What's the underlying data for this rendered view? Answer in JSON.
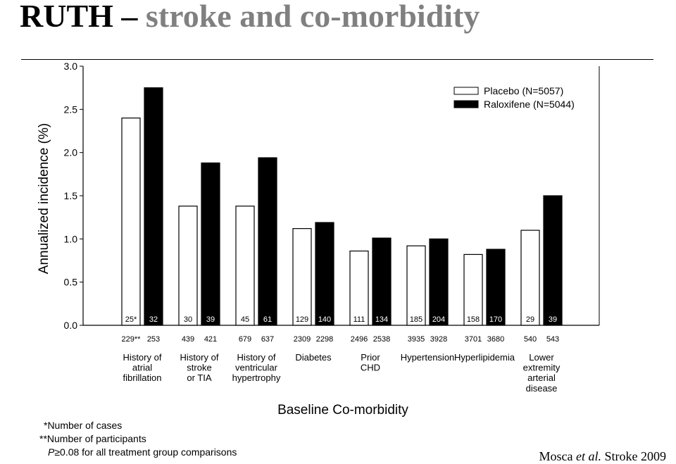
{
  "slide": {
    "title_main": "RUTH",
    "title_sep": " – ",
    "title_sub": "stroke and co-morbidity",
    "footnotes": {
      "cases": "*Number of cases",
      "participants": "**Number of participants",
      "p_italic": "P",
      "p_rest": "≥0.08 for all treatment group comparisons"
    },
    "citation": {
      "author": "Mosca ",
      "etal": "et al.",
      "source": " Stroke 2009"
    }
  },
  "chart_data": {
    "type": "bar",
    "ylabel": "Annualized incidence (%)",
    "xlabel": "Baseline Co-morbidity",
    "ylim": [
      0,
      3.0
    ],
    "yticks": [
      "0.0",
      "0.5",
      "1.0",
      "1.5",
      "2.0",
      "2.5",
      "3.0"
    ],
    "legend_position": "top-right",
    "categories": [
      [
        "History of",
        "atrial",
        "fibrillation"
      ],
      [
        "History of",
        "stroke",
        "or TIA"
      ],
      [
        "History of",
        "ventricular",
        "hypertrophy"
      ],
      [
        "Diabetes"
      ],
      [
        "Prior",
        "CHD"
      ],
      [
        "Hypertension"
      ],
      [
        "Hyperlipidemia"
      ],
      [
        "Lower",
        "extremity",
        "arterial",
        "disease"
      ]
    ],
    "series": [
      {
        "name": "Placebo (N=5057)",
        "color": "#ffffff",
        "values": [
          2.4,
          1.38,
          1.38,
          1.12,
          0.86,
          0.92,
          0.82,
          1.1
        ],
        "cases": [
          "25*",
          "30",
          "45",
          "129",
          "111",
          "185",
          "158",
          "29"
        ],
        "participants": [
          "229**",
          "439",
          "679",
          "2309",
          "2496",
          "3935",
          "3701",
          "540"
        ]
      },
      {
        "name": "Raloxifene (N=5044)",
        "color": "#000000",
        "values": [
          2.75,
          1.88,
          1.94,
          1.19,
          1.01,
          1.0,
          0.88,
          1.5
        ],
        "cases": [
          "32",
          "39",
          "61",
          "140",
          "134",
          "204",
          "170",
          "39"
        ],
        "participants": [
          "253",
          "421",
          "637",
          "2298",
          "2538",
          "3928",
          "3680",
          "543"
        ]
      }
    ]
  }
}
